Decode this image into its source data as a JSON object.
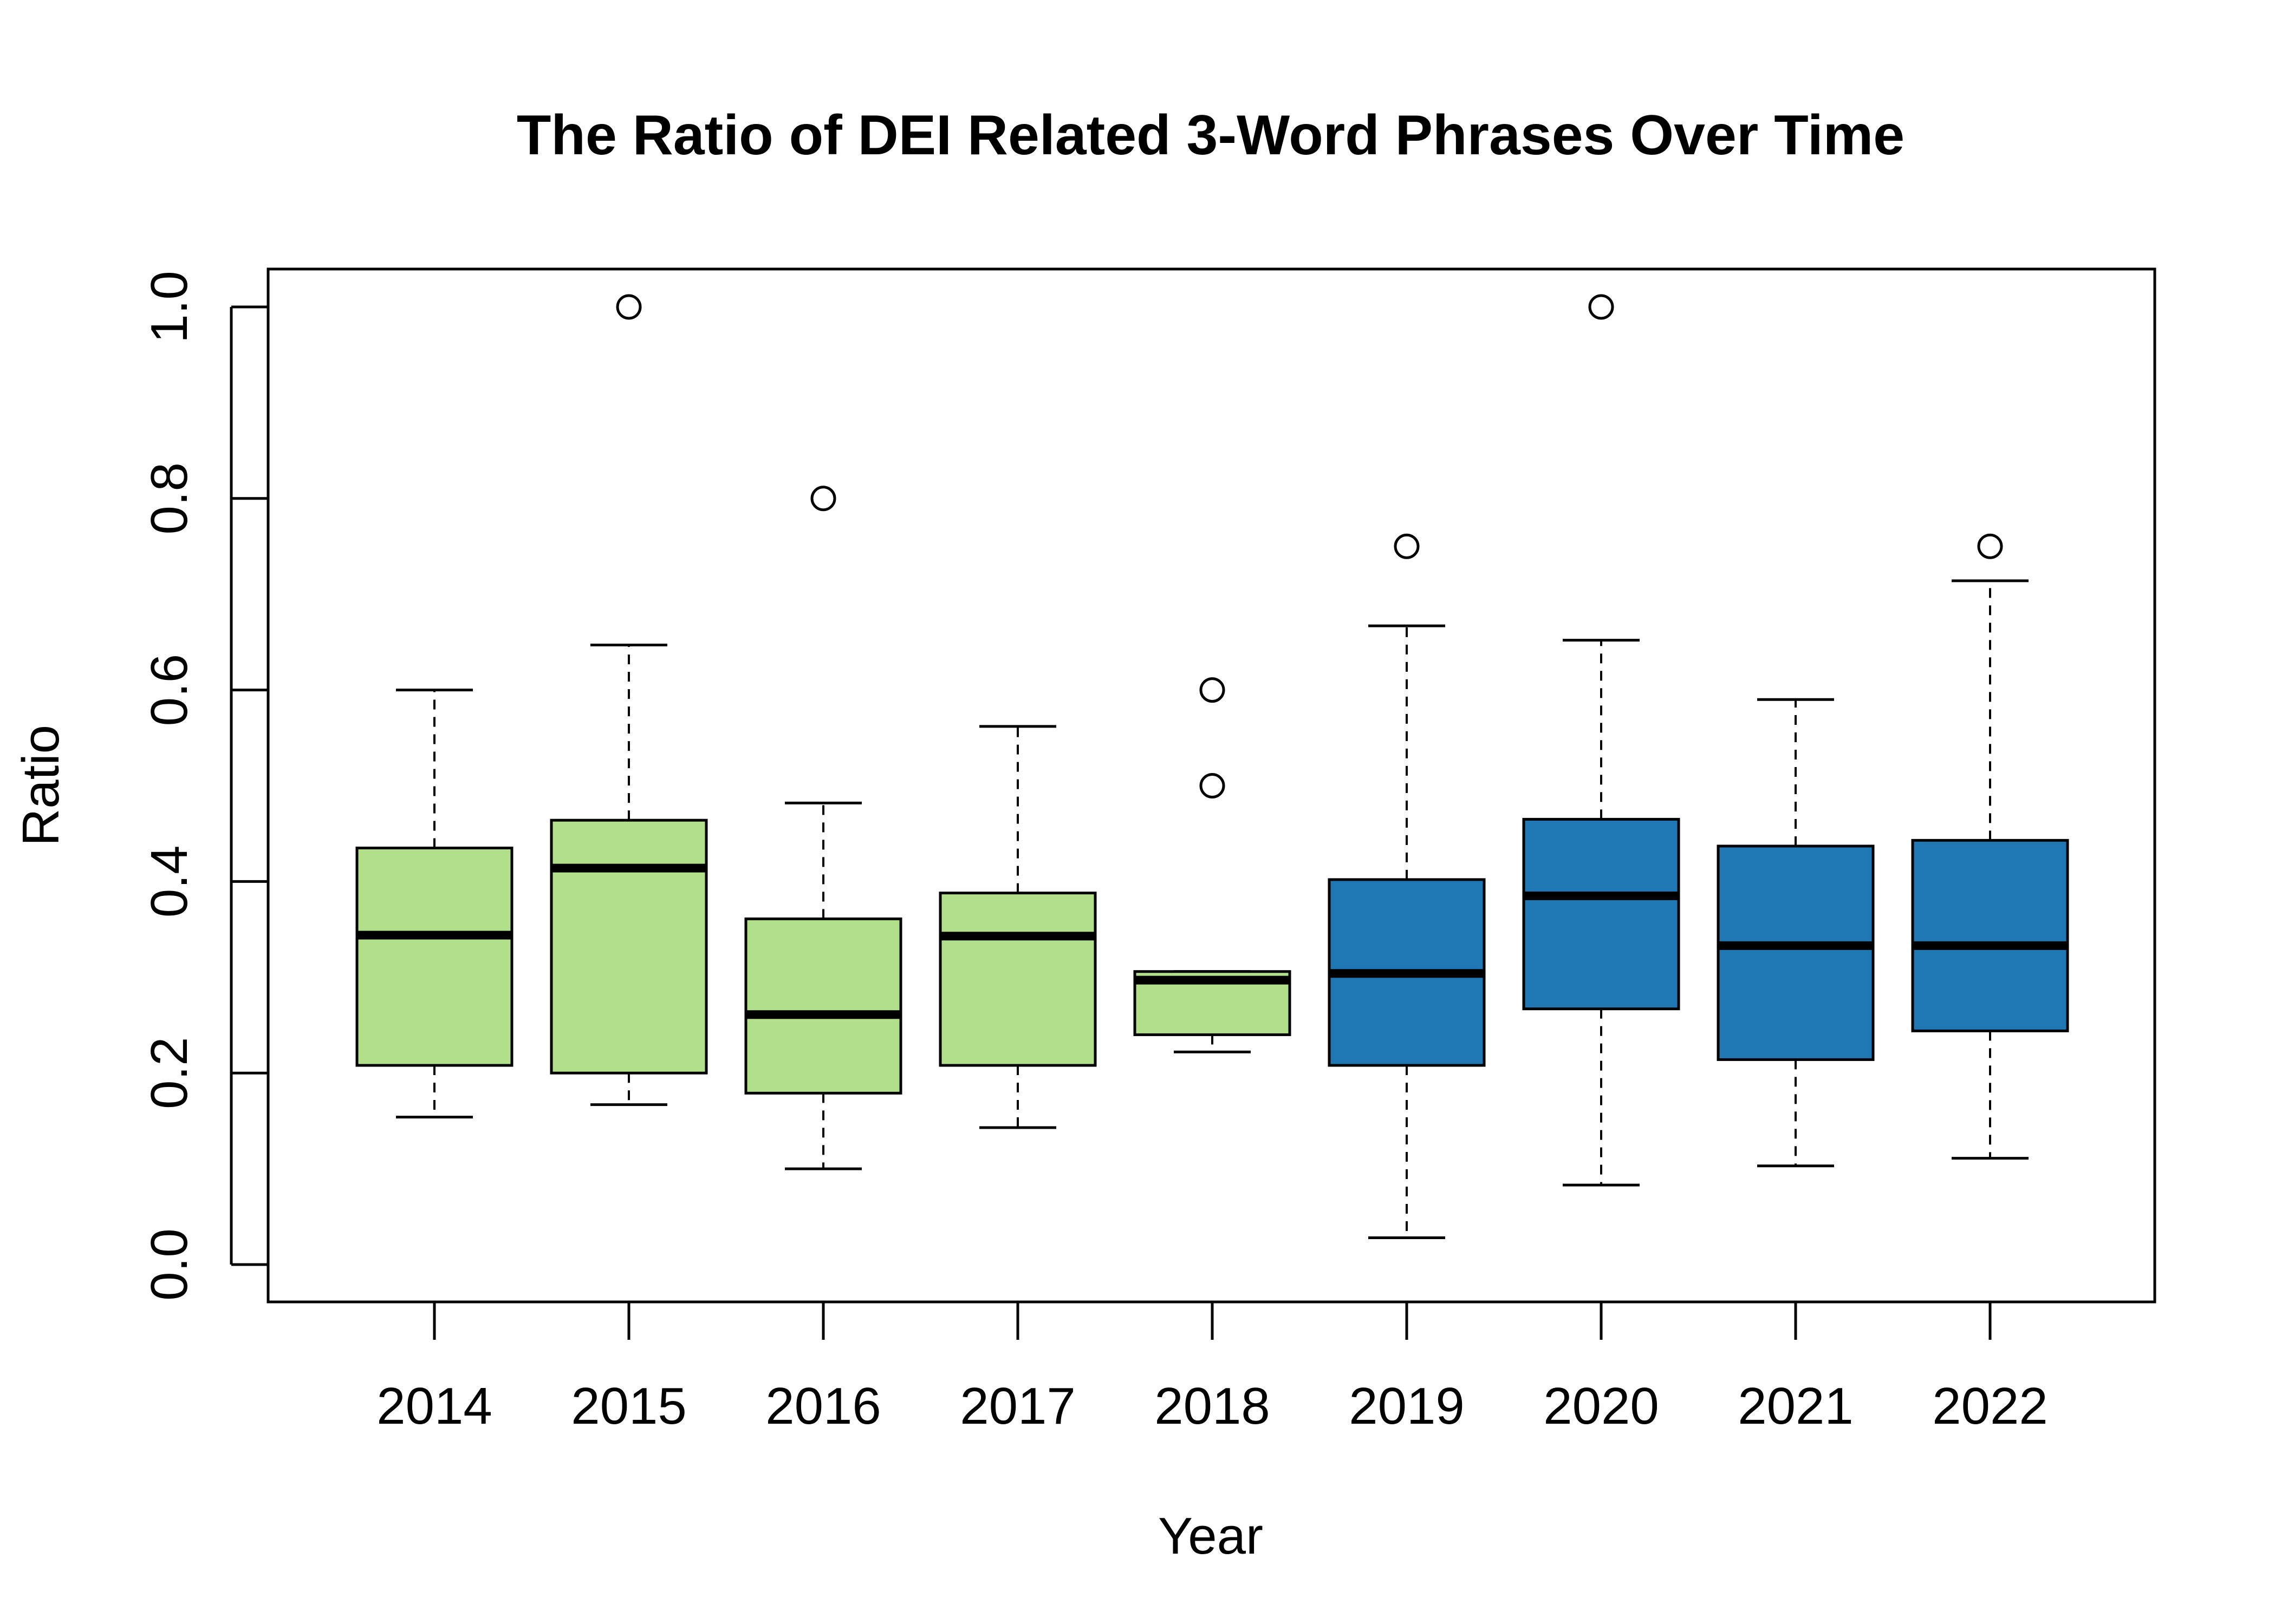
{
  "chart_data": {
    "type": "boxplot",
    "title": "The Ratio of DEI Related 3-Word Phrases Over Time",
    "xlabel": "Year",
    "ylabel": "Ratio",
    "ylim": [
      -0.04,
      1.04
    ],
    "yticks": [
      "0.0",
      "0.2",
      "0.4",
      "0.6",
      "0.8",
      "1.0"
    ],
    "ytick_values": [
      0.0,
      0.2,
      0.4,
      0.6,
      0.8,
      1.0
    ],
    "grid": false,
    "legend": "none",
    "colors": {
      "early": "#b2df8a",
      "late": "#1f78b4",
      "outline": "#000000"
    },
    "categories": [
      "2014",
      "2015",
      "2016",
      "2017",
      "2018",
      "2019",
      "2020",
      "2021",
      "2022"
    ],
    "boxes": [
      {
        "year": "2014",
        "whisker_low": 0.154,
        "q1": 0.208,
        "median": 0.344,
        "q3": 0.435,
        "whisker_high": 0.6,
        "outliers": [],
        "color": "#b2df8a"
      },
      {
        "year": "2015",
        "whisker_low": 0.167,
        "q1": 0.2,
        "median": 0.414,
        "q3": 0.464,
        "whisker_high": 0.647,
        "outliers": [
          1.0
        ],
        "color": "#b2df8a"
      },
      {
        "year": "2016",
        "whisker_low": 0.1,
        "q1": 0.179,
        "median": 0.261,
        "q3": 0.361,
        "whisker_high": 0.482,
        "outliers": [
          0.8
        ],
        "color": "#b2df8a"
      },
      {
        "year": "2017",
        "whisker_low": 0.143,
        "q1": 0.208,
        "median": 0.343,
        "q3": 0.388,
        "whisker_high": 0.562,
        "outliers": [],
        "color": "#b2df8a"
      },
      {
        "year": "2018",
        "whisker_low": 0.222,
        "q1": 0.24,
        "median": 0.297,
        "q3": 0.306,
        "whisker_high": 0.306,
        "outliers": [
          0.5,
          0.6
        ],
        "color": "#b2df8a"
      },
      {
        "year": "2019",
        "whisker_low": 0.028,
        "q1": 0.208,
        "median": 0.304,
        "q3": 0.402,
        "whisker_high": 0.667,
        "outliers": [
          0.75
        ],
        "color": "#1f78b4"
      },
      {
        "year": "2020",
        "whisker_low": 0.083,
        "q1": 0.267,
        "median": 0.385,
        "q3": 0.465,
        "whisker_high": 0.652,
        "outliers": [
          1.0
        ],
        "color": "#1f78b4"
      },
      {
        "year": "2021",
        "whisker_low": 0.103,
        "q1": 0.214,
        "median": 0.333,
        "q3": 0.437,
        "whisker_high": 0.59,
        "outliers": [],
        "color": "#1f78b4"
      },
      {
        "year": "2022",
        "whisker_low": 0.111,
        "q1": 0.244,
        "median": 0.333,
        "q3": 0.443,
        "whisker_high": 0.714,
        "outliers": [
          0.75
        ],
        "color": "#1f78b4"
      }
    ]
  }
}
